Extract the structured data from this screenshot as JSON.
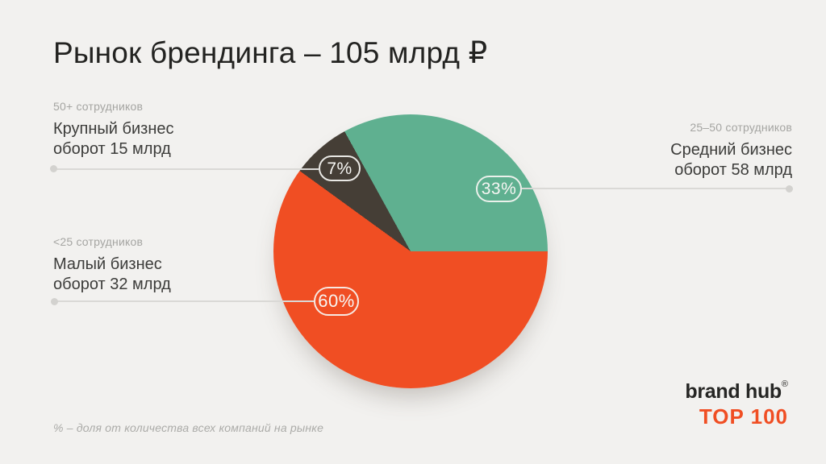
{
  "title": "Рынок брендинга – 105 млрд ₽",
  "chart_data": {
    "type": "pie",
    "title": "Рынок брендинга – 105 млрд ₽",
    "total": "105 млрд ₽",
    "start_angle": "east, clockwise",
    "legend_position": "callout-labels",
    "slices": [
      {
        "name": "Малый бизнес",
        "employees": "<25 сотрудников",
        "revenue": "оборот 32 млрд",
        "value_pct": 60,
        "badge_label": "60%",
        "color": "#F04E23"
      },
      {
        "name": "Крупный бизнес",
        "employees": "50+ сотрудников",
        "revenue": "оборот 15 млрд",
        "value_pct": 7,
        "badge_label": "7%",
        "color": "#453E36"
      },
      {
        "name": "Средний бизнес",
        "employees": "25–50 сотрудников",
        "revenue": "оборот 58 млрд",
        "value_pct": 33,
        "badge_label": "33%",
        "color": "#5FB090"
      }
    ],
    "note": "% – доля от количества всех компаний на рынке"
  },
  "footnote": "% – доля от количества всех компаний на рынке",
  "logo": {
    "brand": "brand hub",
    "registered": "®",
    "line2": "TOP 100",
    "accent_color": "#F04E23"
  },
  "colors": {
    "background": "#F2F1EF",
    "title_text": "#232321",
    "label_text": "#3C3C3A",
    "muted_text": "#A5A5A2",
    "leader_line": "#DAD9D6",
    "badge_outline": "#F7F6F3"
  }
}
